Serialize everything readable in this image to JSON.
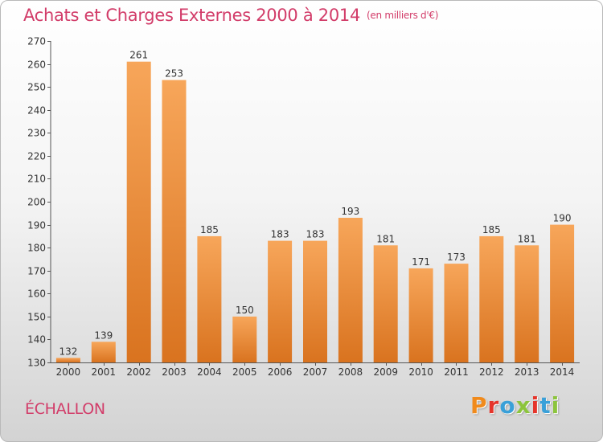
{
  "title": "Achats et Charges Externes 2000 à 2014",
  "subtitle": "(en milliers d'€)",
  "commune": "ÉCHALLON",
  "brand": {
    "letters": [
      "P",
      "r",
      "o",
      "x",
      "i",
      "t",
      "i"
    ]
  },
  "colors": {
    "title": "#d23c69",
    "bar_top": "#f7a65a",
    "bar_bottom": "#d9731f",
    "brand_letters": [
      "#f08a1c",
      "#e5352b",
      "#3aa0d8",
      "#8cc43d",
      "#e5352b",
      "#3aa0d8",
      "#8cc43d"
    ]
  },
  "chart_data": {
    "type": "bar",
    "title": "Achats et Charges Externes 2000 à 2014",
    "subtitle": "(en milliers d'€)",
    "categories": [
      "2000",
      "2001",
      "2002",
      "2003",
      "2004",
      "2005",
      "2006",
      "2007",
      "2008",
      "2009",
      "2010",
      "2011",
      "2012",
      "2013",
      "2014"
    ],
    "values": [
      132,
      139,
      261,
      253,
      185,
      150,
      183,
      183,
      193,
      181,
      171,
      173,
      185,
      181,
      190
    ],
    "ylim": [
      130,
      270
    ],
    "yticks": [
      130,
      140,
      150,
      160,
      170,
      180,
      190,
      200,
      210,
      220,
      230,
      240,
      250,
      260,
      270
    ],
    "grid": false,
    "data_labels": true
  }
}
